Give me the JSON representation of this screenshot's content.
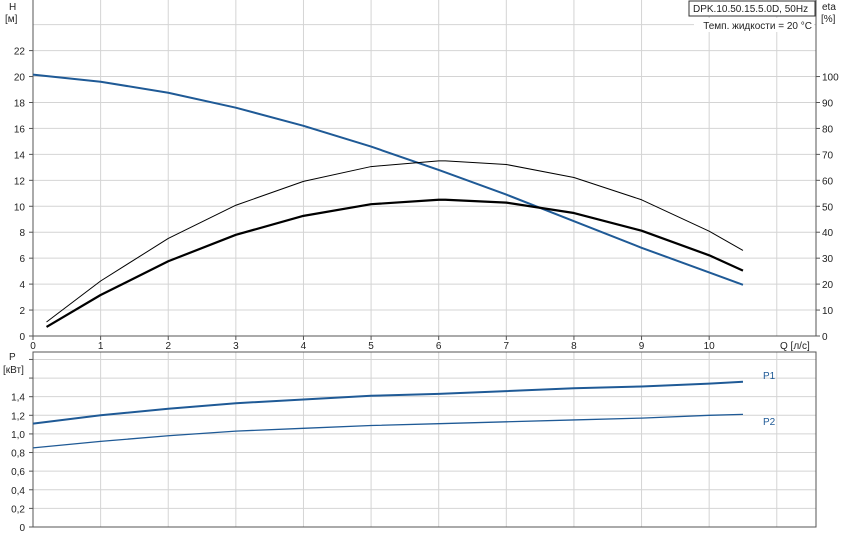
{
  "chart_data": [
    {
      "type": "line",
      "panel": "head-efficiency",
      "title_box": "DPK.10.50.15.5.0D, 50Hz",
      "annotation": "Темп. жидкости = 20 °C",
      "ylabel": "H",
      "yunit": "[м]",
      "y2label": "eta",
      "y2unit": "[%]",
      "xlabel": "Q [л/с]",
      "xlim": [
        0,
        11.58
      ],
      "ylim": [
        0,
        25.9
      ],
      "y2lim": [
        0,
        129.5
      ],
      "xticks": [
        0,
        1,
        2,
        3,
        4,
        5,
        6,
        7,
        8,
        9,
        10
      ],
      "yticks": [
        0,
        2,
        4,
        6,
        8,
        10,
        12,
        14,
        16,
        18,
        20,
        22
      ],
      "y2ticks": [
        0,
        10,
        20,
        30,
        40,
        50,
        60,
        70,
        80,
        90,
        100
      ],
      "grid": true,
      "series": [
        {
          "axis": "H",
          "color": "#1f5a96",
          "width": 2,
          "x": [
            0,
            1,
            2,
            3,
            4,
            5,
            6,
            7,
            8,
            9,
            10,
            10.5
          ],
          "y": [
            20.15,
            19.6,
            18.75,
            17.6,
            16.2,
            14.6,
            12.8,
            10.9,
            8.85,
            6.8,
            4.9,
            3.95
          ]
        },
        {
          "axis": "eta",
          "color": "#000000",
          "width": 1,
          "x": [
            0.2,
            1,
            2,
            3,
            4,
            5,
            6,
            6.1,
            7,
            8,
            9,
            10,
            10.5
          ],
          "y": [
            5.4,
            21.2,
            37.6,
            50.4,
            59.6,
            65.3,
            67.5,
            67.5,
            66.1,
            61.1,
            52.5,
            40.4,
            33.0
          ]
        },
        {
          "axis": "eta",
          "color": "#000000",
          "width": 2.2,
          "x": [
            0.2,
            1,
            2,
            3,
            4,
            5,
            6,
            6.1,
            7,
            8,
            9,
            10,
            10.5
          ],
          "y": [
            3.5,
            15.8,
            28.8,
            39.0,
            46.3,
            50.8,
            52.5,
            52.5,
            51.4,
            47.4,
            40.6,
            31.1,
            25.2
          ]
        }
      ]
    },
    {
      "type": "line",
      "panel": "power",
      "ylabel": "P",
      "yunit": "[кВт]",
      "xlim": [
        0,
        11.58
      ],
      "ylim": [
        0,
        1.88
      ],
      "yticks": [
        "0",
        "0,2",
        "0,4",
        "0,6",
        "0,8",
        "1,0",
        "1,2",
        "1,4"
      ],
      "ytick_values": [
        0,
        0.2,
        0.4,
        0.6,
        0.8,
        1.0,
        1.2,
        1.4
      ],
      "grid": true,
      "series": [
        {
          "name": "P1",
          "color": "#1f5a96",
          "width": 2,
          "x": [
            0,
            1,
            2,
            3,
            4,
            5,
            6,
            7,
            8,
            9,
            10,
            10.5
          ],
          "y": [
            1.11,
            1.2,
            1.27,
            1.33,
            1.37,
            1.41,
            1.43,
            1.46,
            1.49,
            1.51,
            1.54,
            1.56
          ]
        },
        {
          "name": "P2",
          "color": "#1f5a96",
          "width": 1.3,
          "x": [
            0,
            1,
            2,
            3,
            4,
            5,
            6,
            7,
            8,
            9,
            10,
            10.5
          ],
          "y": [
            0.85,
            0.92,
            0.98,
            1.03,
            1.06,
            1.09,
            1.11,
            1.13,
            1.15,
            1.17,
            1.2,
            1.21
          ]
        }
      ]
    }
  ]
}
